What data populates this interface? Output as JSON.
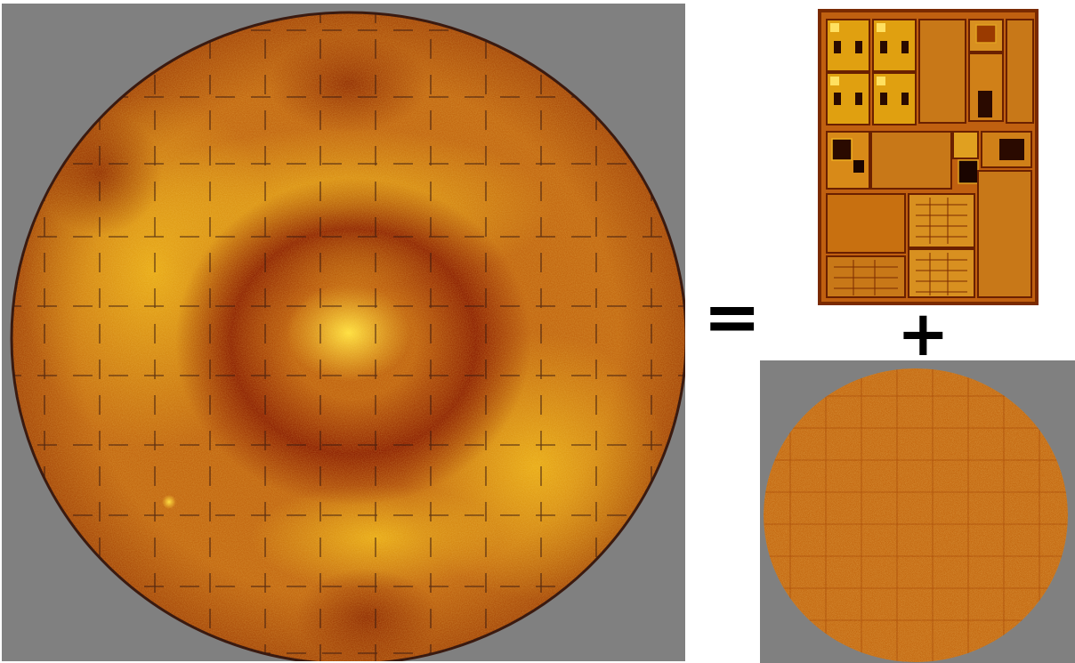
{
  "operators": {
    "equals": "=",
    "plus": "+"
  },
  "colors": {
    "background_gray": "#808080",
    "map_dark": "#8a1c00",
    "map_mid": "#c86a10",
    "map_light": "#f0b81a",
    "map_highlight": "#ffe040",
    "wafer_edge": "#3a1a10"
  }
}
